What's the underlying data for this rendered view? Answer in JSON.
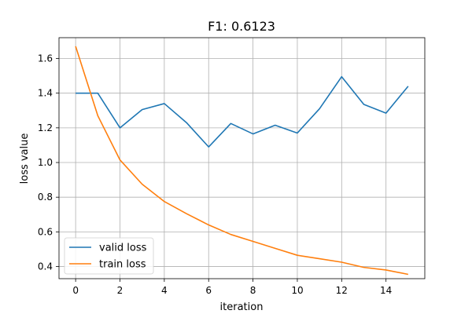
{
  "chart_data": {
    "type": "line",
    "title": "F1: 0.6123",
    "xlabel": "iteration",
    "ylabel": "loss value",
    "x": [
      0,
      1,
      2,
      3,
      4,
      5,
      6,
      7,
      8,
      9,
      10,
      11,
      12,
      13,
      14,
      15
    ],
    "xlim": [
      -0.75,
      15.75
    ],
    "ylim": [
      0.33,
      1.72
    ],
    "xticks": [
      0,
      2,
      4,
      6,
      8,
      10,
      12,
      14
    ],
    "yticks": [
      0.4,
      0.6,
      0.8,
      1.0,
      1.2,
      1.4,
      1.6
    ],
    "xtick_labels": [
      "0",
      "2",
      "4",
      "6",
      "8",
      "10",
      "12",
      "14"
    ],
    "ytick_labels": [
      "0.4",
      "0.6",
      "0.8",
      "1.0",
      "1.2",
      "1.4",
      "1.6"
    ],
    "grid": true,
    "legend_position": "lower-left",
    "series": [
      {
        "name": "valid loss",
        "color": "#1f77b4",
        "values": [
          1.4,
          1.4,
          1.2,
          1.305,
          1.34,
          1.23,
          1.09,
          1.225,
          1.165,
          1.215,
          1.17,
          1.31,
          1.495,
          1.335,
          1.285,
          1.44
        ]
      },
      {
        "name": "train loss",
        "color": "#ff7f0e",
        "values": [
          1.67,
          1.27,
          1.015,
          0.875,
          0.775,
          0.705,
          0.64,
          0.585,
          0.545,
          0.505,
          0.465,
          0.445,
          0.425,
          0.395,
          0.38,
          0.355
        ]
      }
    ]
  }
}
